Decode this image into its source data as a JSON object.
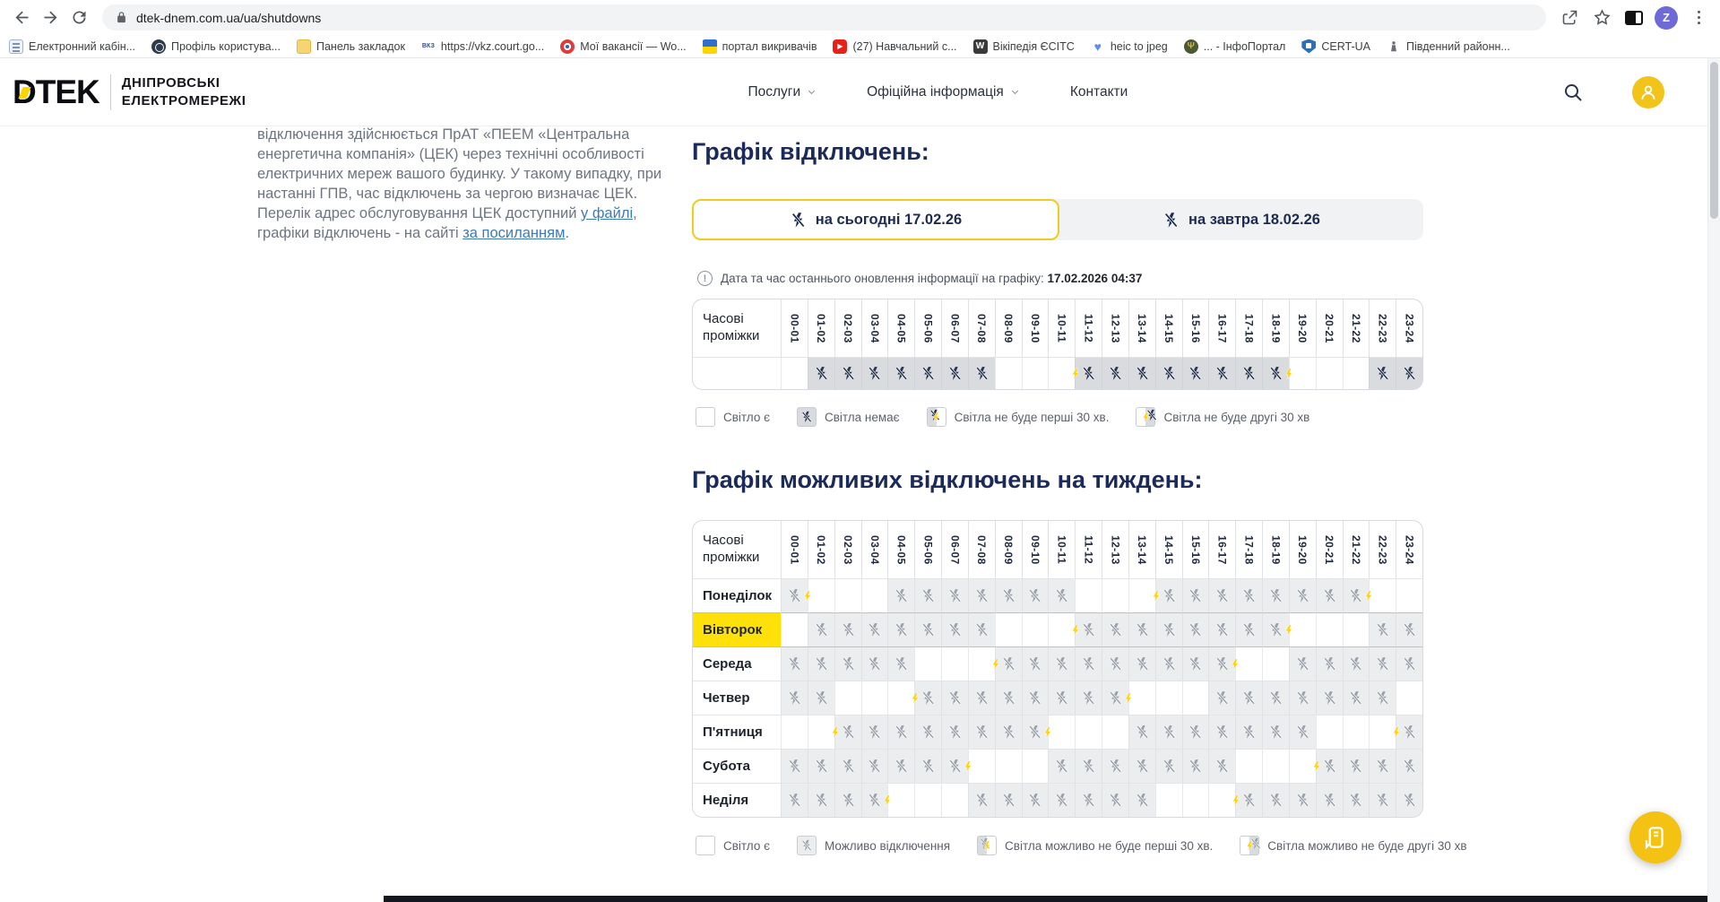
{
  "browser": {
    "url": "dtek-dnem.com.ua/ua/shutdowns",
    "profile_initial": "Z",
    "bookmarks": [
      {
        "icon": "doc",
        "label": "Електронний кабін..."
      },
      {
        "icon": "globe",
        "label": "Профіль користува..."
      },
      {
        "icon": "folder",
        "label": "Панель закладок"
      },
      {
        "icon": "vkz",
        "label": "https://vkz.court.go..."
      },
      {
        "icon": "target",
        "label": "Мої вакансії — Wo..."
      },
      {
        "icon": "flag",
        "label": "портал викривачів"
      },
      {
        "icon": "youtube",
        "label": "(27) Навчальний с..."
      },
      {
        "icon": "wiki",
        "label": "Вікіпедія ЄСІТС"
      },
      {
        "icon": "heart",
        "label": "heic to jpeg"
      },
      {
        "icon": "emblem",
        "label": "... - ІнфоПортал"
      },
      {
        "icon": "shield",
        "label": "CERT-UA"
      },
      {
        "icon": "statue",
        "label": "Південний районн..."
      }
    ]
  },
  "header": {
    "brand": "DTEK",
    "sub1": "ДНІПРОВСЬКІ",
    "sub2": "ЕЛЕКТРОМЕРЕЖІ",
    "nav": [
      {
        "label": "Послуги",
        "chevron": true
      },
      {
        "label": "Офіційна інформація",
        "chevron": true
      },
      {
        "label": "Контакти",
        "chevron": false
      }
    ]
  },
  "text_block": {
    "p1": "відключення здійснюється ПрАТ «ПЕЕМ «Центральна енергетична компанія» (ЦЕК) через технічні особливості електричних мереж вашого будинку. У такому випадку, при настанні ГПВ, час відключень за чергою визначає ЦЕК. Перелік адрес обслуговування ЦЕК доступний ",
    "link1": "у файлі",
    "p2": ", графіки відключень - на сайті ",
    "link2": "за посиланням",
    "p3": "."
  },
  "main": {
    "title1": "Графік відключень:",
    "tabs": [
      {
        "label": "на сьогодні 17.02.26",
        "active": true
      },
      {
        "label": "на завтра 18.02.26",
        "active": false
      }
    ],
    "update_note": "Дата та час останнього оновлення інформації на графіку:",
    "update_value": "17.02.2026 04:37",
    "time_header": "Часові проміжки",
    "time_slots": [
      "00-01",
      "01-02",
      "02-03",
      "03-04",
      "04-05",
      "05-06",
      "06-07",
      "07-08",
      "08-09",
      "09-10",
      "10-11",
      "11-12",
      "12-13",
      "13-14",
      "14-15",
      "15-16",
      "16-17",
      "17-18",
      "18-19",
      "19-20",
      "20-21",
      "21-22",
      "22-23",
      "23-24"
    ],
    "state_key": {
      ".": "on",
      "x": "off",
      "f": "first",
      "s": "second"
    },
    "today_pattern": ".xxxxxxx...fxxxxxxs...xx",
    "legend1": [
      {
        "type": "on",
        "label": "Світло є"
      },
      {
        "type": "off",
        "label": "Світла немає"
      },
      {
        "type": "first",
        "label": "Світла не буде перші 30 хв."
      },
      {
        "type": "second",
        "label": "Світла не буде другі 30 хв"
      }
    ],
    "title2": "Графік можливих відключень на тиждень:",
    "week": [
      {
        "day": "Понеділок",
        "highlight": false,
        "pattern": "s...xxxxxxx...fxxxxxxs.."
      },
      {
        "day": "Вівторок",
        "highlight": true,
        "pattern": ".xxxxxxx...fxxxxxxs...xx"
      },
      {
        "day": "Середа",
        "highlight": false,
        "pattern": "xxxxx...fxxxxxxxs..xxxxx"
      },
      {
        "day": "Четвер",
        "highlight": false,
        "pattern": "xx...fxxxxxxs...xxxxxxx."
      },
      {
        "day": "П'ятниця",
        "highlight": false,
        "pattern": "..fxxxxxxs...xxxxxxx...f"
      },
      {
        "day": "Субота",
        "highlight": false,
        "pattern": "xxxxxxs...xxxxxxx...fxxx"
      },
      {
        "day": "Неділя",
        "highlight": false,
        "pattern": "xxxs...xxxxxxx...fxxxxxx"
      }
    ],
    "legend2": [
      {
        "type": "on",
        "label": "Світло є"
      },
      {
        "type": "off",
        "label": "Можливо відключення"
      },
      {
        "type": "first",
        "label": "Світла можливо не буде перші 30 хв."
      },
      {
        "type": "second",
        "label": "Світла можливо не буде другі 30 хв"
      }
    ]
  },
  "colors": {
    "accent_yellow": "#ffd500",
    "bolt_dark": "#28344f",
    "bolt_gray": "#9ba1aa",
    "bolt_yellow": "#ffd20a",
    "navy_heading": "#1c2a5a",
    "highlight_row": "#ffe10a"
  }
}
